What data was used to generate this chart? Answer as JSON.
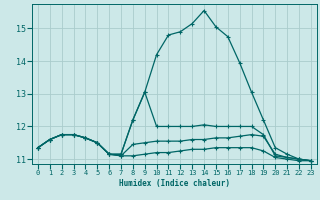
{
  "xlabel": "Humidex (Indice chaleur)",
  "background_color": "#cce8e8",
  "grid_color": "#aacccc",
  "line_color": "#006666",
  "xlim": [
    -0.5,
    23.5
  ],
  "ylim": [
    10.85,
    15.75
  ],
  "xticks": [
    0,
    1,
    2,
    3,
    4,
    5,
    6,
    7,
    8,
    9,
    10,
    11,
    12,
    13,
    14,
    15,
    16,
    17,
    18,
    19,
    20,
    21,
    22,
    23
  ],
  "yticks": [
    11,
    12,
    13,
    14,
    15
  ],
  "series": [
    {
      "x": [
        0,
        1,
        2,
        3,
        4,
        5,
        6,
        7,
        8,
        9,
        10,
        11,
        12,
        13,
        14,
        15,
        16,
        17,
        18,
        19,
        20,
        21,
        22,
        23
      ],
      "y": [
        11.35,
        11.6,
        11.75,
        11.75,
        11.65,
        11.5,
        11.15,
        11.15,
        12.2,
        13.05,
        14.2,
        14.8,
        14.9,
        15.15,
        15.55,
        15.05,
        14.75,
        13.95,
        13.05,
        12.2,
        11.35,
        11.15,
        11.0,
        10.95
      ]
    },
    {
      "x": [
        0,
        1,
        2,
        3,
        4,
        5,
        6,
        7,
        8,
        9,
        10,
        11,
        12,
        13,
        14,
        15,
        16,
        17,
        18,
        19,
        20,
        21,
        22,
        23
      ],
      "y": [
        11.35,
        11.6,
        11.75,
        11.75,
        11.65,
        11.5,
        11.15,
        11.15,
        12.2,
        13.05,
        12.0,
        12.0,
        12.0,
        12.0,
        12.05,
        12.0,
        12.0,
        12.0,
        12.0,
        11.75,
        11.1,
        11.05,
        11.0,
        10.95
      ]
    },
    {
      "x": [
        0,
        1,
        2,
        3,
        4,
        5,
        6,
        7,
        8,
        9,
        10,
        11,
        12,
        13,
        14,
        15,
        16,
        17,
        18,
        19,
        20,
        21,
        22,
        23
      ],
      "y": [
        11.35,
        11.6,
        11.75,
        11.75,
        11.65,
        11.5,
        11.15,
        11.1,
        11.45,
        11.5,
        11.55,
        11.55,
        11.55,
        11.6,
        11.6,
        11.65,
        11.65,
        11.7,
        11.75,
        11.7,
        11.15,
        11.05,
        11.0,
        10.95
      ]
    },
    {
      "x": [
        0,
        1,
        2,
        3,
        4,
        5,
        6,
        7,
        8,
        9,
        10,
        11,
        12,
        13,
        14,
        15,
        16,
        17,
        18,
        19,
        20,
        21,
        22,
        23
      ],
      "y": [
        11.35,
        11.6,
        11.75,
        11.75,
        11.65,
        11.5,
        11.15,
        11.1,
        11.1,
        11.15,
        11.2,
        11.2,
        11.25,
        11.3,
        11.3,
        11.35,
        11.35,
        11.35,
        11.35,
        11.25,
        11.05,
        11.0,
        10.95,
        10.95
      ]
    }
  ]
}
